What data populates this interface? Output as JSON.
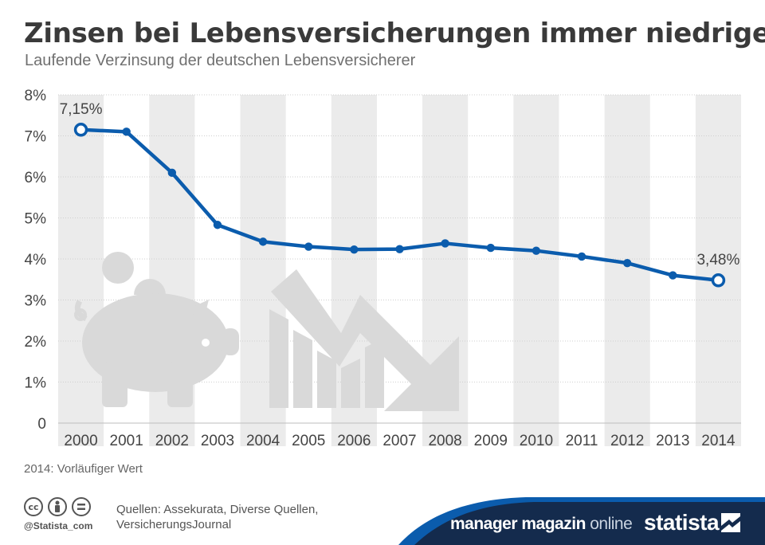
{
  "title": "Zinsen bei Lebensversicherungen immer niedriger",
  "subtitle": "Laufende Verzinsung der deutschen Lebensversicherer",
  "note": "2014: Vorläufiger Wert",
  "sources_line1": "Quellen: Assekurata, Diverse Quellen,",
  "sources_line2": "VersicherungsJournal",
  "handle": "@Statista_com",
  "brand_manager": "manager magazin",
  "brand_online": " online",
  "brand_statista": "statista",
  "icons": [
    "cc-icon",
    "by-icon",
    "nd-icon",
    "piggy-bank-icon",
    "downtrend-arrow-icon",
    "statista-logo-icon"
  ],
  "colors": {
    "line": "#0b5cad",
    "stripe": "#ebebeb",
    "banner": "#142b4d",
    "illustration": "#d9d9d9"
  },
  "chart_data": {
    "type": "line",
    "categories": [
      "2000",
      "2001",
      "2002",
      "2003",
      "2004",
      "2005",
      "2006",
      "2007",
      "2008",
      "2009",
      "2010",
      "2011",
      "2012",
      "2013",
      "2014"
    ],
    "values": [
      7.15,
      7.1,
      6.1,
      4.83,
      4.42,
      4.3,
      4.23,
      4.24,
      4.38,
      4.27,
      4.2,
      4.06,
      3.9,
      3.6,
      3.48
    ],
    "ylim": [
      0,
      8
    ],
    "yticks": [
      0,
      1,
      2,
      3,
      4,
      5,
      6,
      7,
      8
    ],
    "ytick_labels": [
      "0",
      "1%",
      "2%",
      "3%",
      "4%",
      "5%",
      "6%",
      "7%",
      "8%"
    ],
    "xlabel": "",
    "ylabel": "",
    "grid": true,
    "legend": "none",
    "data_labels": [
      {
        "index": 0,
        "text": "7,15%"
      },
      {
        "index": 14,
        "text": "3,48%"
      }
    ]
  }
}
